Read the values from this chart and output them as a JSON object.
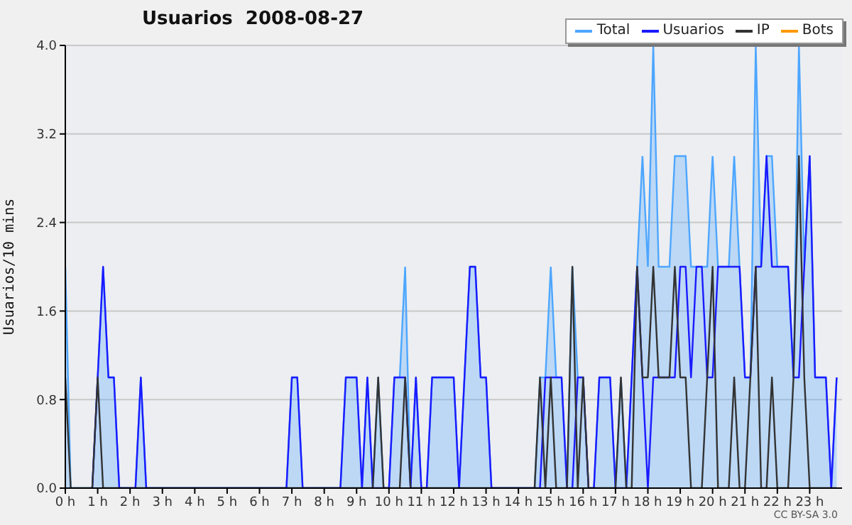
{
  "chart_data": {
    "type": "line",
    "title": "Usuarios  2008-08-27",
    "ylabel": "Usuarios/10 mins",
    "annotations": [
      "CC BY-SA 3.0"
    ],
    "x": [
      0,
      0.167,
      0.333,
      0.5,
      0.667,
      0.833,
      1,
      1.167,
      1.333,
      1.5,
      1.667,
      1.833,
      2,
      2.167,
      2.333,
      2.5,
      2.667,
      2.833,
      3,
      3.167,
      3.333,
      3.5,
      3.667,
      3.833,
      4,
      4.167,
      4.333,
      4.5,
      4.667,
      4.833,
      5,
      5.167,
      5.333,
      5.5,
      5.667,
      5.833,
      6,
      6.167,
      6.333,
      6.5,
      6.667,
      6.833,
      7,
      7.167,
      7.333,
      7.5,
      7.667,
      7.833,
      8,
      8.167,
      8.333,
      8.5,
      8.667,
      8.833,
      9,
      9.167,
      9.333,
      9.5,
      9.667,
      9.833,
      10,
      10.167,
      10.333,
      10.5,
      10.667,
      10.833,
      11,
      11.167,
      11.333,
      11.5,
      11.667,
      11.833,
      12,
      12.167,
      12.333,
      12.5,
      12.667,
      12.833,
      13,
      13.167,
      13.333,
      13.5,
      13.667,
      13.833,
      14,
      14.167,
      14.333,
      14.5,
      14.667,
      14.833,
      15,
      15.167,
      15.333,
      15.5,
      15.667,
      15.833,
      16,
      16.167,
      16.333,
      16.5,
      16.667,
      16.833,
      17,
      17.167,
      17.333,
      17.5,
      17.667,
      17.833,
      18,
      18.167,
      18.333,
      18.5,
      18.667,
      18.833,
      19,
      19.167,
      19.333,
      19.5,
      19.667,
      19.833,
      20,
      20.167,
      20.333,
      20.5,
      20.667,
      20.833,
      21,
      21.167,
      21.333,
      21.5,
      21.667,
      21.833,
      22,
      22.167,
      22.333,
      22.5,
      22.667,
      22.833,
      23,
      23.167,
      23.333,
      23.5,
      23.667,
      23.833
    ],
    "series": [
      {
        "name": "Total",
        "type": "area",
        "color": "#4da6ff",
        "values": [
          2,
          0,
          0,
          0,
          0,
          0,
          1,
          2,
          1,
          1,
          0,
          0,
          0,
          0,
          1,
          0,
          0,
          0,
          0,
          0,
          0,
          0,
          0,
          0,
          0,
          0,
          0,
          0,
          0,
          0,
          0,
          0,
          0,
          0,
          0,
          0,
          0,
          0,
          0,
          0,
          0,
          0,
          1,
          1,
          0,
          0,
          0,
          0,
          0,
          0,
          0,
          0,
          1,
          1,
          1,
          0,
          1,
          0,
          1,
          0,
          0,
          1,
          1,
          2,
          0,
          1,
          0,
          0,
          1,
          1,
          1,
          1,
          1,
          0,
          1,
          2,
          2,
          1,
          1,
          0,
          0,
          0,
          0,
          0,
          0,
          0,
          0,
          0,
          1,
          1,
          2,
          1,
          1,
          0,
          2,
          1,
          1,
          0,
          0,
          1,
          1,
          1,
          0,
          1,
          0,
          1,
          2,
          3,
          2,
          4,
          2,
          2,
          2,
          3,
          3,
          3,
          2,
          2,
          2,
          2,
          3,
          2,
          2,
          2,
          3,
          2,
          1,
          1,
          4,
          2,
          3,
          3,
          2,
          2,
          2,
          1,
          4,
          2,
          3,
          1,
          1,
          1,
          0,
          1
        ]
      },
      {
        "name": "Usuarios",
        "color": "#1a1aff",
        "values": [
          null,
          null,
          null,
          null,
          null,
          0,
          1,
          2,
          1,
          1,
          0,
          0,
          0,
          0,
          1,
          0,
          0,
          0,
          0,
          0,
          0,
          0,
          0,
          0,
          0,
          0,
          0,
          0,
          0,
          0,
          0,
          0,
          0,
          0,
          0,
          0,
          0,
          0,
          0,
          0,
          0,
          0,
          1,
          1,
          0,
          0,
          0,
          0,
          0,
          0,
          0,
          0,
          1,
          1,
          1,
          0,
          1,
          0,
          0,
          0,
          0,
          1,
          1,
          1,
          0,
          1,
          0,
          0,
          1,
          1,
          1,
          1,
          1,
          0,
          1,
          2,
          2,
          1,
          1,
          0,
          0,
          0,
          0,
          0,
          0,
          0,
          0,
          0,
          0,
          1,
          1,
          1,
          1,
          0,
          0,
          1,
          1,
          0,
          0,
          1,
          1,
          1,
          0,
          0,
          0,
          1,
          2,
          1,
          0,
          1,
          1,
          1,
          1,
          1,
          2,
          2,
          1,
          2,
          2,
          1,
          1,
          2,
          2,
          2,
          2,
          2,
          1,
          1,
          2,
          2,
          3,
          2,
          2,
          2,
          2,
          1,
          1,
          2,
          3,
          1,
          1,
          1,
          0,
          1
        ]
      },
      {
        "name": "IP",
        "color": "#333333",
        "values": [
          1,
          0,
          0,
          0,
          0,
          0,
          1,
          0,
          0,
          0,
          0,
          0,
          0,
          0,
          0,
          0,
          0,
          0,
          0,
          0,
          0,
          0,
          0,
          0,
          0,
          0,
          0,
          0,
          0,
          0,
          0,
          0,
          0,
          0,
          0,
          0,
          0,
          0,
          0,
          0,
          0,
          0,
          0,
          0,
          0,
          0,
          0,
          0,
          0,
          0,
          0,
          0,
          0,
          0,
          0,
          0,
          0,
          0,
          1,
          0,
          0,
          0,
          0,
          1,
          0,
          0,
          0,
          0,
          0,
          0,
          0,
          0,
          0,
          0,
          0,
          0,
          0,
          0,
          0,
          0,
          0,
          0,
          0,
          0,
          0,
          0,
          0,
          0,
          1,
          0,
          1,
          0,
          0,
          0,
          2,
          0,
          1,
          0,
          0,
          0,
          0,
          0,
          0,
          1,
          0,
          0,
          2,
          1,
          1,
          2,
          1,
          1,
          1,
          2,
          1,
          1,
          0,
          0,
          0,
          1,
          2,
          0,
          0,
          0,
          1,
          0,
          0,
          1,
          2,
          0,
          0,
          1,
          0,
          0,
          0,
          1,
          3,
          1,
          0,
          0,
          0,
          0,
          0,
          0
        ]
      },
      {
        "name": "Bots",
        "color": "#ff9900",
        "values": [
          null,
          null,
          null,
          null,
          null,
          null,
          null,
          null,
          null,
          null,
          null,
          null,
          null,
          null,
          null,
          null,
          null,
          null,
          null,
          null,
          null,
          null,
          null,
          null,
          null,
          null,
          null,
          null,
          null,
          null,
          null,
          null,
          null,
          null,
          null,
          null,
          null,
          null,
          null,
          null,
          null,
          null,
          null,
          null,
          null,
          null,
          null,
          null,
          null,
          null,
          null,
          null,
          null,
          null,
          null,
          null,
          null,
          null,
          null,
          null,
          null,
          null,
          null,
          null,
          null,
          null,
          null,
          null,
          null,
          null,
          null,
          null,
          null,
          null,
          null,
          null,
          null,
          null,
          null,
          null,
          null,
          null,
          null,
          null,
          null,
          null,
          null,
          null,
          null,
          null,
          null,
          null,
          null,
          null,
          null,
          null,
          null,
          null,
          null,
          null,
          null,
          null,
          null,
          null,
          null,
          null,
          null,
          null,
          null,
          null,
          null,
          null,
          null,
          null,
          null,
          null,
          null,
          null,
          null,
          null,
          null,
          null,
          null,
          null,
          null,
          null,
          null,
          null,
          null,
          null,
          null,
          null,
          null,
          null,
          null,
          null,
          null,
          null,
          null,
          null,
          null,
          null,
          null,
          null
        ]
      }
    ],
    "xlim": [
      0,
      24
    ],
    "xticks": [
      {
        "value": 0,
        "label": "0 h"
      },
      {
        "value": 1,
        "label": "1 h"
      },
      {
        "value": 2,
        "label": "2 h"
      },
      {
        "value": 3,
        "label": "3 h"
      },
      {
        "value": 4,
        "label": "4 h"
      },
      {
        "value": 5,
        "label": "5 h"
      },
      {
        "value": 6,
        "label": "6 h"
      },
      {
        "value": 7,
        "label": "7 h"
      },
      {
        "value": 8,
        "label": "8 h"
      },
      {
        "value": 9,
        "label": "9 h"
      },
      {
        "value": 10,
        "label": "10 h"
      },
      {
        "value": 11,
        "label": "11 h"
      },
      {
        "value": 12,
        "label": "12 h"
      },
      {
        "value": 13,
        "label": "13 h"
      },
      {
        "value": 14,
        "label": "14 h"
      },
      {
        "value": 15,
        "label": "15 h"
      },
      {
        "value": 16,
        "label": "16 h"
      },
      {
        "value": 17,
        "label": "17 h"
      },
      {
        "value": 18,
        "label": "18 h"
      },
      {
        "value": 19,
        "label": "19 h"
      },
      {
        "value": 20,
        "label": "20 h"
      },
      {
        "value": 21,
        "label": "21 h"
      },
      {
        "value": 22,
        "label": "22 h"
      },
      {
        "value": 23,
        "label": "23 h"
      }
    ],
    "ylim": [
      0,
      4
    ],
    "yticks": [
      {
        "value": 0,
        "label": "0.0"
      },
      {
        "value": 0.8,
        "label": "0.8"
      },
      {
        "value": 1.6,
        "label": "1.6"
      },
      {
        "value": 2.4,
        "label": "2.4"
      },
      {
        "value": 3.2,
        "label": "3.2"
      },
      {
        "value": 4,
        "label": "4.0"
      }
    ],
    "grid": "y",
    "legend": "top right"
  }
}
